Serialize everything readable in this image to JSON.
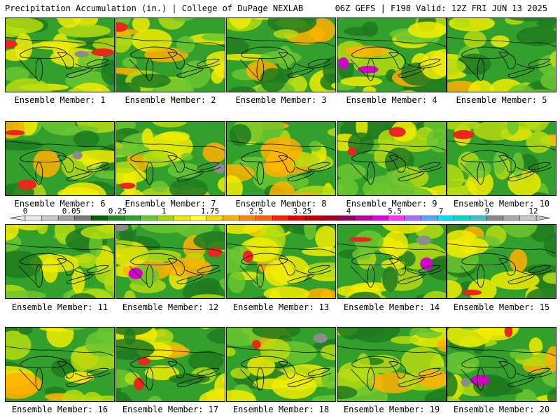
{
  "header": {
    "left_title": "Precipitation Accumulation (in.) | College of DuPage NEXLAB",
    "right_title": "06Z GEFS | F198 Valid: 12Z FRI JUN 13 2025"
  },
  "panel_label_prefix": "Ensemble Member: ",
  "members": [
    1,
    2,
    3,
    4,
    5,
    6,
    7,
    8,
    9,
    10,
    11,
    12,
    13,
    14,
    15,
    16,
    17,
    18,
    19,
    20
  ],
  "color_scale": {
    "tick_labels": [
      "0",
      "0.05",
      "0.25",
      "1",
      "1.75",
      "2.5",
      "3.25",
      "4",
      "5.5",
      "7",
      "9",
      "12"
    ],
    "colors": [
      "#e8e8e8",
      "#c8c8c8",
      "#a0a0a0",
      "#787878",
      "#006400",
      "#228b22",
      "#32a032",
      "#66c832",
      "#a0d800",
      "#e8e800",
      "#ffff33",
      "#ffd700",
      "#ffb000",
      "#ff8c00",
      "#ff6000",
      "#ff2000",
      "#e00000",
      "#c00000",
      "#a00020",
      "#900060",
      "#c0009c",
      "#e000e0",
      "#ff33ff",
      "#a070ff",
      "#60a0ff",
      "#00e0ff",
      "#00d8c8",
      "#40c0c0",
      "#888888",
      "#a8a8a8",
      "#c8c8c8"
    ]
  },
  "map_colors": {
    "base": "#33a02c",
    "dark_green": "#1f7a1f",
    "light_green": "#6cc62f",
    "yellow_green": "#b5dc10",
    "yellow": "#f2ec00",
    "orange": "#ffb000",
    "red": "#e8281c",
    "magenta": "#d000c8",
    "gray": "#8c8c8c",
    "outline": "#000000"
  }
}
